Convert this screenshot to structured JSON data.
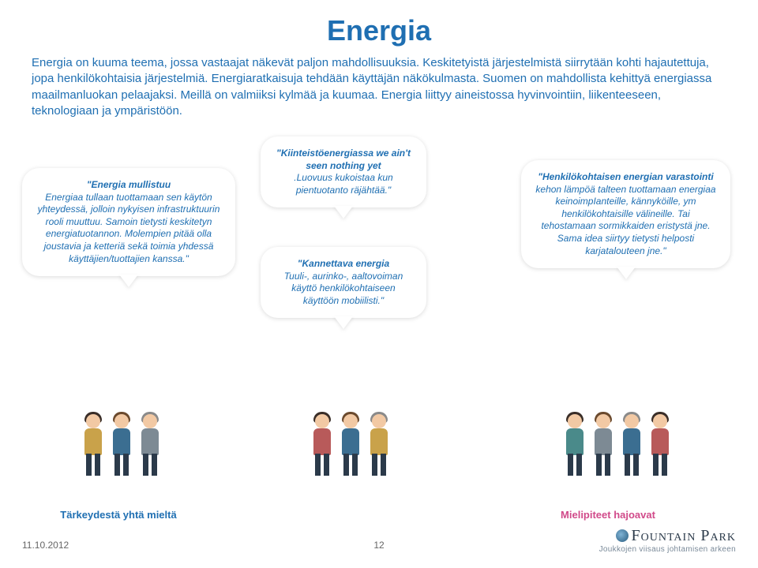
{
  "colors": {
    "title": "#1f6fb2",
    "body_text": "#1f6fb2",
    "caption_left": "#1f6fb2",
    "caption_right": "#d14a8a",
    "footer": "#777777",
    "skin": "#f2c9a4",
    "hair_dark": "#3a2e28",
    "hair_brown": "#6b4a2e",
    "hair_grey": "#8a8a8a",
    "shirt_blue": "#3b6e91",
    "shirt_mustard": "#c9a24a",
    "shirt_red": "#b85a5a",
    "shirt_grey": "#7d8a94",
    "shirt_teal": "#4a8a8a",
    "pants": "#2b3a4a"
  },
  "title": "Energia",
  "intro": "Energia on kuuma teema, jossa vastaajat näkevät paljon mahdollisuuksia. Keskitetyistä järjestelmistä siirrytään kohti hajautettuja, jopa henkilökohtaisia järjestelmiä. Energiaratkaisuja tehdään käyttäjän näkökulmasta. Suomen on mahdollista kehittyä energiassa maailmanluokan pelaajaksi. Meillä on valmiiksi kylmää ja kuumaa. Energia liittyy aineistossa hyvinvointiin, liikenteeseen, teknologiaan ja ympäristöön.",
  "bubbles": {
    "b1": {
      "title": "\"Energia mullistuu",
      "text": "Energiaa tullaan tuottamaan sen käytön yhteydessä, jolloin nykyisen infrastruktuurin rooli muuttuu. Samoin tietysti keskitetyn energiatuotannon. Molempien pitää olla joustavia ja ketteriä sekä toimia yhdessä käyttäjien/tuottajien kanssa.\""
    },
    "b2": {
      "title": "\"Kiinteistöenergiassa we ain't seen nothing yet",
      "text": ".Luovuus kukoistaa kun pientuotanto räjähtää.\""
    },
    "b3": {
      "title": "\"Kannettava energia",
      "text": "Tuuli-, aurinko-, aaltovoiman käyttö henkilökohtaiseen käyttöön mobiilisti.\""
    },
    "b4": {
      "title": "\"Henkilökohtaisen energian varastointi",
      "text": "kehon lämpöä talteen tuottamaan energiaa keinoimpIanteille, kännyköille, ym henkilökohtaisille välineille. Tai tehostamaan sormikkaiden eristystä jne. Sama idea siirtyy tietysti helposti karjatalouteen jne.\""
    }
  },
  "captions": {
    "left": "Tärkeydestä yhtä mieltä",
    "right": "Mielipiteet hajoavat"
  },
  "footer": {
    "date": "11.10.2012",
    "page": "12"
  },
  "logo": {
    "brand": "Fountain Park",
    "tagline": "Joukkojen viisaus johtamisen arkeen"
  }
}
